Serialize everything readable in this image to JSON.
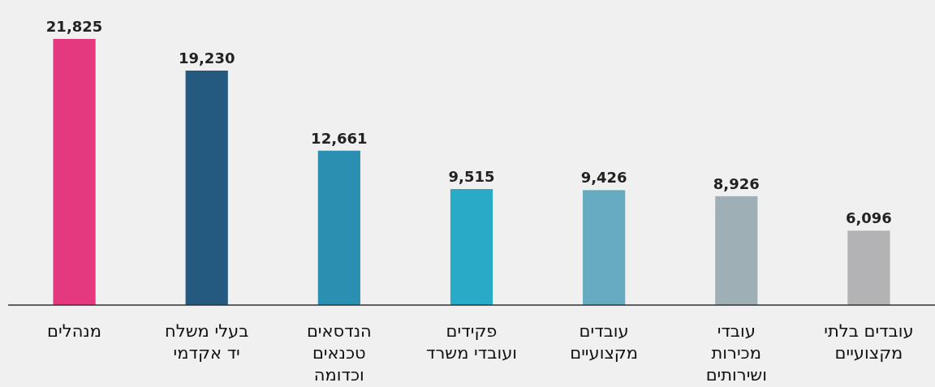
{
  "chart_data": {
    "type": "bar",
    "relative": false,
    "categories": [
      "מנהלים",
      "בעלי משלח יד אקדמי",
      "הנדסאים טכנאים וכדומה",
      "פקידים ועובדי משרד",
      "עובדים מקצועיים",
      "עובדי מכירות ושירותים",
      "עובדים בלתי מקצועיים"
    ],
    "values": [
      21825,
      19230,
      12661,
      9515,
      9426,
      8926,
      6096
    ],
    "colors": [
      "#e4387f",
      "#255a80",
      "#2a8fb0",
      "#29abc7",
      "#66abbf",
      "#9eb0b6",
      "#b3b3b5"
    ],
    "value_labels": [
      "21,825",
      "19,230",
      "12,661",
      "9,515",
      "9,426",
      "8,926",
      "6,096"
    ]
  }
}
